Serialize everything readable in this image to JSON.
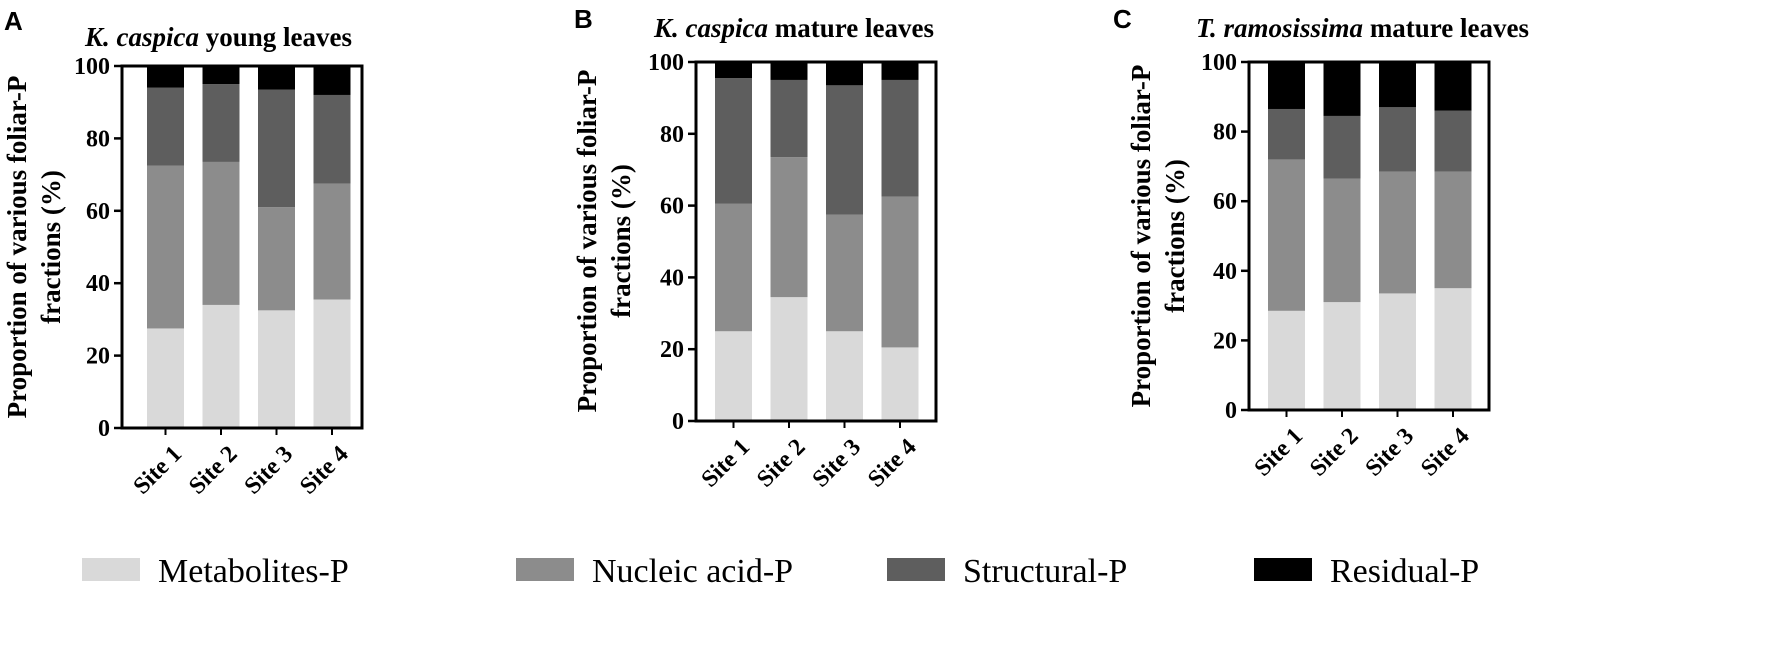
{
  "colors": {
    "Metabolites-P": "#d9d9d9",
    "Nucleic acid-P": "#8c8c8c",
    "Structural-P": "#5e5e5e",
    "Residual-P": "#000000"
  },
  "legend": [
    "Metabolites-P",
    "Nucleic acid-P",
    "Structural-P",
    "Residual-P"
  ],
  "chart_data": [
    {
      "type": "bar",
      "stacked": true,
      "panel": "A",
      "title_italic": "K. caspica",
      "title_rest": " young leaves",
      "ylabel_lines": [
        "Proportion of  various foliar-P",
        "fractions (%)"
      ],
      "ylim": [
        0,
        100
      ],
      "yticks": [
        0,
        20,
        40,
        60,
        80,
        100
      ],
      "categories": [
        "Site 1",
        "Site 2",
        "Site 3",
        "Site 4"
      ],
      "series": [
        {
          "name": "Metabolites-P",
          "values": [
            27.5,
            34,
            32.5,
            35.5
          ]
        },
        {
          "name": "Nucleic acid-P",
          "values": [
            45,
            39.5,
            28.5,
            32
          ]
        },
        {
          "name": "Structural-P",
          "values": [
            21.5,
            21.5,
            32.5,
            24.5
          ]
        },
        {
          "name": "Residual-P",
          "values": [
            6,
            5,
            6.5,
            8
          ]
        }
      ]
    },
    {
      "type": "bar",
      "stacked": true,
      "panel": "B",
      "title_italic": "K. caspica",
      "title_rest": " mature leaves",
      "ylabel_lines": [
        "Proportion of  various foliar-P",
        "fractions (%)"
      ],
      "ylim": [
        0,
        100
      ],
      "yticks": [
        0,
        20,
        40,
        60,
        80,
        100
      ],
      "categories": [
        "Site 1",
        "Site 2",
        "Site 3",
        "Site 4"
      ],
      "series": [
        {
          "name": "Metabolites-P",
          "values": [
            25,
            34.5,
            25,
            20.5
          ]
        },
        {
          "name": "Nucleic acid-P",
          "values": [
            35.5,
            39,
            32.5,
            42
          ]
        },
        {
          "name": "Structural-P",
          "values": [
            35,
            21.5,
            36,
            32.5
          ]
        },
        {
          "name": "Residual-P",
          "values": [
            4.5,
            5,
            6.5,
            5
          ]
        }
      ]
    },
    {
      "type": "bar",
      "stacked": true,
      "panel": "C",
      "title_italic": "T. ramosissima",
      "title_rest": " mature leaves",
      "ylabel_lines": [
        "Proportion of  various foliar-P",
        "fractions (%)"
      ],
      "ylim": [
        0,
        100
      ],
      "yticks": [
        0,
        20,
        40,
        60,
        80,
        100
      ],
      "categories": [
        "Site 1",
        "Site 2",
        "Site 3",
        "Site 4"
      ],
      "series": [
        {
          "name": "Metabolites-P",
          "values": [
            28.5,
            31,
            33.5,
            35
          ]
        },
        {
          "name": "Nucleic acid-P",
          "values": [
            43.5,
            35.5,
            35,
            33.5
          ]
        },
        {
          "name": "Structural-P",
          "values": [
            14.5,
            18,
            18.5,
            17.5
          ]
        },
        {
          "name": "Residual-P",
          "values": [
            13.5,
            15.5,
            13,
            14
          ]
        }
      ]
    }
  ]
}
